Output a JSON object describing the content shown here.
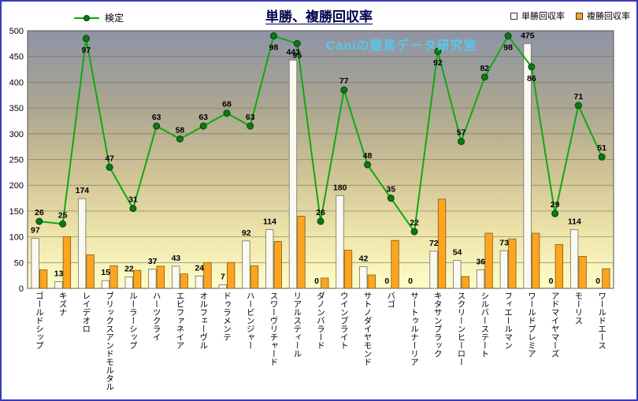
{
  "title": "単勝、複勝回収率",
  "watermark": "Caniの競馬データ研究室",
  "legend": {
    "kentei": "検定",
    "tansho": "単勝回収率",
    "fukusho": "複勝回収率"
  },
  "y_axis": {
    "min": 0,
    "max": 500,
    "step": 50,
    "ticks": [
      0,
      50,
      100,
      150,
      200,
      250,
      300,
      350,
      400,
      450,
      500
    ]
  },
  "colors": {
    "frame": "#3a3ac0",
    "title": "#00004d",
    "plot_top": "#8f94a4",
    "plot_bottom": "#fffec9",
    "grid": "#6b6b5e",
    "tansho_fill": "#fafaf0",
    "tansho_border": "#70706a",
    "fukusho_fill": "#ffa421",
    "fukusho_border": "#7d5b10",
    "line": "#0caa0c",
    "point_fill": "#0b7a14",
    "point_border": "#05400a",
    "watermark": "#55c8f0",
    "label": "#000000"
  },
  "chart_data": {
    "type": "combo-bar-line",
    "title": "単勝、複勝回収率",
    "grid": true,
    "legend_position": "top",
    "ylim": [
      0,
      500
    ],
    "y_step": 50,
    "secondary_axis": {
      "series": "検定",
      "min": 0,
      "max": 100,
      "maps_to_primary_scale": 5
    },
    "categories": [
      "ゴールドシップ",
      "キズナ",
      "レイデオロ",
      "ブリックスアンドモルタル",
      "ルーラーシップ",
      "ハーツクライ",
      "エピファネイア",
      "オルフェーヴル",
      "ドゥラメンテ",
      "ハービンジャー",
      "スワーヴリチャード",
      "リアルスティール",
      "ダノンバラード",
      "ウインブライト",
      "サトノダイヤモンド",
      "バゴ",
      "サートゥルナーリア",
      "キタサンブラック",
      "スクリーンヒーロー",
      "シルバーステート",
      "フィエールマン",
      "ワールドプレミア",
      "アドマイヤマーズ",
      "モーリス",
      "ワールドエース"
    ],
    "series": [
      {
        "name": "単勝回収率",
        "type": "bar",
        "color": "#fafaf0",
        "labels_shown": true,
        "values": [
          97,
          13,
          174,
          15,
          22,
          37,
          43,
          24,
          7,
          92,
          114,
          443,
          0,
          180,
          42,
          0,
          0,
          72,
          54,
          36,
          73,
          475,
          0,
          114,
          0
        ]
      },
      {
        "name": "複勝回収率",
        "type": "bar",
        "color": "#ffa421",
        "labels_shown": false,
        "values": [
          36,
          100,
          65,
          44,
          35,
          43,
          28,
          50,
          50,
          44,
          91,
          140,
          20,
          74,
          26,
          93,
          0,
          173,
          23,
          107,
          96,
          107,
          85,
          62,
          38
        ]
      },
      {
        "name": "検定",
        "type": "line",
        "color": "#0caa0c",
        "axis": "secondary",
        "labels_shown": true,
        "values": [
          26,
          25,
          97,
          47,
          31,
          63,
          58,
          63,
          68,
          63,
          98,
          95,
          26,
          77,
          48,
          35,
          22,
          92,
          57,
          82,
          98,
          86,
          29,
          71,
          51
        ]
      }
    ]
  }
}
